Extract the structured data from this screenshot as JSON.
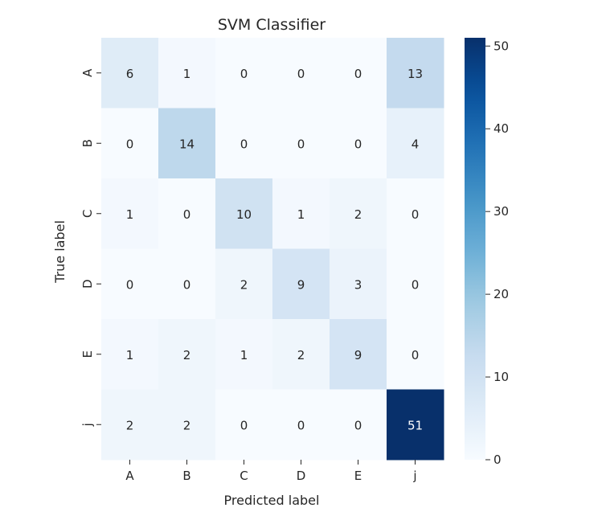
{
  "chart_data": {
    "type": "heatmap",
    "title": "SVM Classifier",
    "xlabel": "Predicted label",
    "ylabel": "True label",
    "x_categories": [
      "A",
      "B",
      "C",
      "D",
      "E",
      "j"
    ],
    "y_categories": [
      "A",
      "B",
      "C",
      "D",
      "E",
      "j"
    ],
    "values": [
      [
        6,
        1,
        0,
        0,
        0,
        13
      ],
      [
        0,
        14,
        0,
        0,
        0,
        4
      ],
      [
        1,
        0,
        10,
        1,
        2,
        0
      ],
      [
        0,
        0,
        2,
        9,
        3,
        0
      ],
      [
        1,
        2,
        1,
        2,
        9,
        0
      ],
      [
        2,
        2,
        0,
        0,
        0,
        51
      ]
    ],
    "colormap": "Blues",
    "vmin": 0,
    "vmax": 51,
    "colorbar_ticks": [
      0,
      10,
      20,
      30,
      40,
      50
    ],
    "cell_labels": true
  }
}
